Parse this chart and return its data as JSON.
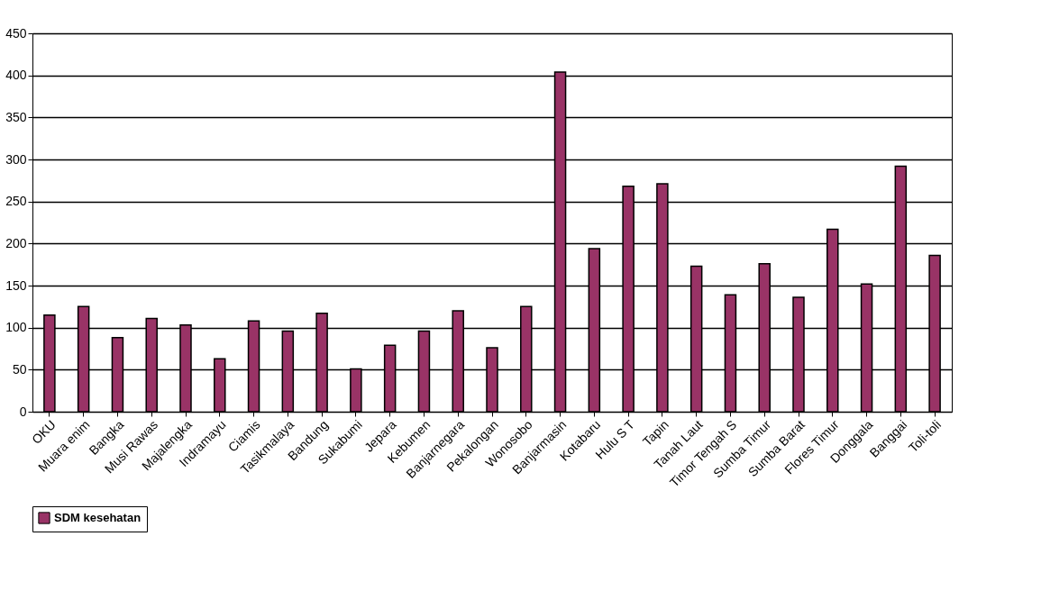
{
  "chart_data": {
    "type": "bar",
    "categories": [
      "OKU",
      "Muara enim",
      "Bangka",
      "Musi Rawas",
      "Majalengka",
      "Indramayu",
      "Ciamis",
      "Tasikmalaya",
      "Bandung",
      "Sukabumi",
      "Jepara",
      "Kebumen",
      "Banjarnegara",
      "Pekalongan",
      "Wonosobo",
      "Banjarmasin",
      "Kotabaru",
      "Hulu S T",
      "Tapin",
      "Tanah Laut",
      "Timor Tengah S",
      "Sumba Timur",
      "Sumba Barat",
      "Flores Timur",
      "Donggala",
      "Banggai",
      "Toli-toli"
    ],
    "series": [
      {
        "name": "SDM kesehatan",
        "color": "#993366",
        "values": [
          115,
          125,
          88,
          111,
          103,
          63,
          108,
          96,
          117,
          51,
          79,
          96,
          120,
          76,
          125,
          404,
          194,
          268,
          271,
          173,
          139,
          176,
          136,
          217,
          152,
          292,
          186
        ]
      }
    ],
    "ylim": [
      0,
      450
    ],
    "yticks": [
      0,
      50,
      100,
      150,
      200,
      250,
      300,
      350,
      400,
      450
    ],
    "grid": "y",
    "legend": "bottom"
  }
}
